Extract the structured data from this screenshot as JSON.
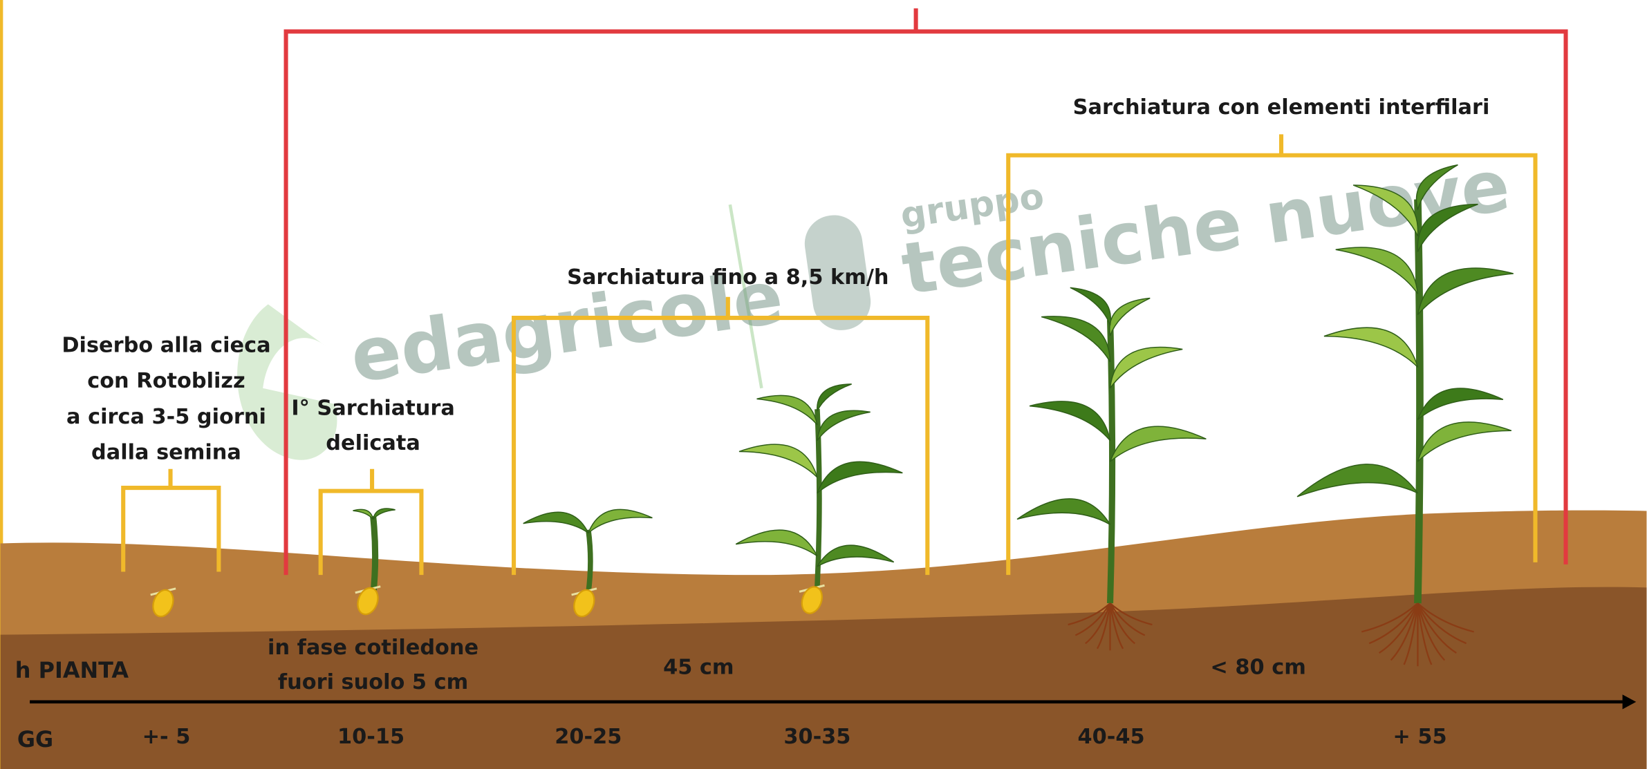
{
  "watermark": {
    "brand": "edagricole",
    "group": "gruppo",
    "publisher": "tecniche nuove"
  },
  "operations": [
    {
      "label": [
        "Diserbo alla cieca",
        "con Rotoblizz",
        "a circa 3-5 giorni",
        "dalla semina"
      ]
    },
    {
      "label": [
        "I° Sarchiatura",
        "delicata"
      ]
    },
    {
      "label": [
        "Sarchiatura fino a 8,5 km/h"
      ]
    },
    {
      "label": [
        "Sarchiatura con elementi interfilari"
      ]
    }
  ],
  "rows": {
    "height": "h PIANTA",
    "days": "GG"
  },
  "heights": [
    [
      "in fase cotiledone",
      "fuori suolo 5 cm"
    ],
    [
      "45 cm"
    ],
    [
      "< 80 cm"
    ]
  ],
  "days": [
    "+- 5",
    "10-15",
    "20-25",
    "30-35",
    "40-45",
    "+ 55"
  ]
}
